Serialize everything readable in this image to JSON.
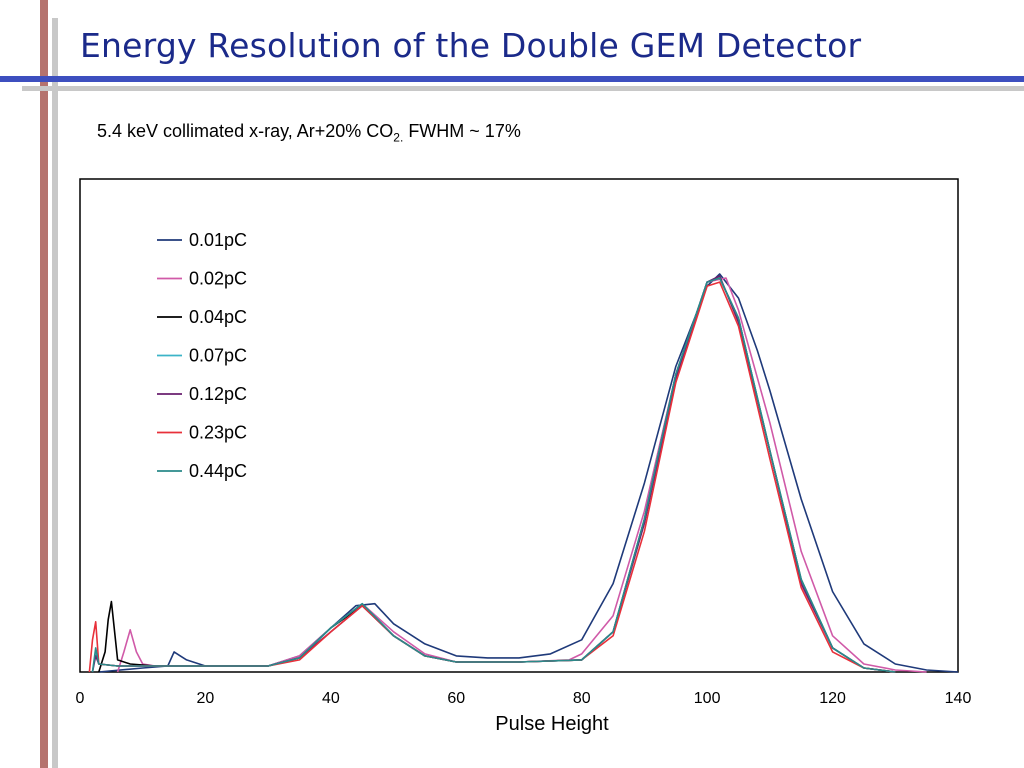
{
  "slide": {
    "title": "Energy Resolution of the Double GEM Detector",
    "subtitle_pre": "5.4 keV collimated x-ray, Ar+20% CO",
    "subtitle_sub": "2.",
    "subtitle_post": " FWHM ~ 17%",
    "colors": {
      "title": "#1b2a8a",
      "accent_bar": "#3d4fbf",
      "red_bar": "#a85a55"
    }
  },
  "chart_data": {
    "type": "line",
    "title": "",
    "xlabel": "Pulse Height",
    "ylabel": "",
    "xlim": [
      0,
      140
    ],
    "ylim": [
      0,
      1
    ],
    "xticks": [
      0,
      20,
      40,
      60,
      80,
      100,
      120,
      140
    ],
    "grid": false,
    "legend_placement": "top-left",
    "series": [
      {
        "name": "0.01pC",
        "color": "#1f3a7a",
        "x": [
          3,
          10,
          14,
          15,
          16,
          17,
          20,
          30,
          35,
          40,
          44,
          47,
          50,
          55,
          60,
          65,
          70,
          75,
          80,
          85,
          90,
          95,
          100,
          102,
          105,
          108,
          110,
          115,
          120,
          125,
          130,
          135,
          140
        ],
        "y": [
          0,
          0.01,
          0.015,
          0.05,
          0.04,
          0.03,
          0.015,
          0.015,
          0.04,
          0.11,
          0.165,
          0.17,
          0.12,
          0.07,
          0.04,
          0.035,
          0.035,
          0.045,
          0.08,
          0.22,
          0.47,
          0.76,
          0.96,
          0.99,
          0.93,
          0.8,
          0.7,
          0.43,
          0.2,
          0.07,
          0.02,
          0.005,
          0.0
        ]
      },
      {
        "name": "0.02pC",
        "color": "#d05aa8",
        "x": [
          6,
          7,
          8,
          9,
          10,
          12,
          20,
          30,
          35,
          40,
          45,
          50,
          55,
          60,
          70,
          78,
          80,
          85,
          90,
          95,
          100,
          103,
          105,
          110,
          115,
          120,
          125,
          130,
          135
        ],
        "y": [
          0,
          0.05,
          0.105,
          0.05,
          0.02,
          0.015,
          0.015,
          0.015,
          0.04,
          0.11,
          0.17,
          0.1,
          0.045,
          0.025,
          0.025,
          0.03,
          0.045,
          0.14,
          0.4,
          0.74,
          0.97,
          0.98,
          0.9,
          0.62,
          0.3,
          0.09,
          0.02,
          0.005,
          0.0
        ]
      },
      {
        "name": "0.04pC",
        "color": "#000000",
        "x": [
          3,
          4,
          4.5,
          5,
          6,
          8,
          12,
          20,
          30,
          35,
          40,
          45,
          50,
          55,
          60,
          70,
          80,
          85,
          90,
          95,
          100,
          102,
          105,
          110,
          115,
          120,
          125,
          130
        ],
        "y": [
          0,
          0.05,
          0.13,
          0.175,
          0.03,
          0.02,
          0.015,
          0.015,
          0.015,
          0.035,
          0.11,
          0.165,
          0.09,
          0.04,
          0.025,
          0.025,
          0.03,
          0.1,
          0.38,
          0.74,
          0.97,
          0.98,
          0.88,
          0.55,
          0.23,
          0.06,
          0.01,
          0.0
        ]
      },
      {
        "name": "0.07pC",
        "color": "#3cb4c8",
        "x": [
          2,
          2.5,
          3,
          6,
          20,
          30,
          35,
          40,
          45,
          50,
          55,
          60,
          70,
          80,
          85,
          90,
          95,
          100,
          102,
          105,
          110,
          115,
          120,
          125,
          130
        ],
        "y": [
          0,
          0.05,
          0.02,
          0.015,
          0.015,
          0.015,
          0.035,
          0.11,
          0.17,
          0.09,
          0.04,
          0.025,
          0.025,
          0.03,
          0.1,
          0.38,
          0.74,
          0.97,
          0.98,
          0.88,
          0.55,
          0.23,
          0.06,
          0.01,
          0.0
        ]
      },
      {
        "name": "0.12pC",
        "color": "#6a1f6f",
        "x": [
          2,
          2.5,
          3,
          6,
          20,
          30,
          35,
          40,
          45,
          50,
          55,
          60,
          70,
          80,
          85,
          90,
          95,
          100,
          102,
          105,
          110,
          115,
          120,
          125,
          130
        ],
        "y": [
          0,
          0.04,
          0.02,
          0.015,
          0.015,
          0.015,
          0.035,
          0.1,
          0.165,
          0.09,
          0.04,
          0.025,
          0.025,
          0.03,
          0.1,
          0.37,
          0.73,
          0.97,
          0.985,
          0.87,
          0.55,
          0.22,
          0.06,
          0.01,
          0.0
        ]
      },
      {
        "name": "0.23pC",
        "color": "#e8303a",
        "x": [
          1.5,
          2,
          2.5,
          3,
          6,
          20,
          30,
          35,
          40,
          45,
          50,
          55,
          60,
          70,
          80,
          85,
          90,
          95,
          100,
          102,
          105,
          110,
          115,
          120,
          125,
          130
        ],
        "y": [
          0,
          0.08,
          0.125,
          0.02,
          0.015,
          0.015,
          0.015,
          0.03,
          0.1,
          0.165,
          0.09,
          0.04,
          0.025,
          0.025,
          0.03,
          0.09,
          0.35,
          0.72,
          0.96,
          0.97,
          0.86,
          0.53,
          0.21,
          0.05,
          0.01,
          0.0
        ]
      },
      {
        "name": "0.44pC",
        "color": "#2a8a8a",
        "x": [
          2,
          2.5,
          3,
          6,
          20,
          30,
          35,
          40,
          45,
          50,
          55,
          60,
          70,
          80,
          85,
          90,
          95,
          100,
          102,
          105,
          110,
          115,
          120,
          125,
          130
        ],
        "y": [
          0,
          0.06,
          0.02,
          0.015,
          0.015,
          0.015,
          0.035,
          0.11,
          0.17,
          0.09,
          0.04,
          0.025,
          0.025,
          0.03,
          0.1,
          0.38,
          0.74,
          0.97,
          0.98,
          0.88,
          0.55,
          0.23,
          0.06,
          0.01,
          0.0
        ]
      }
    ]
  }
}
